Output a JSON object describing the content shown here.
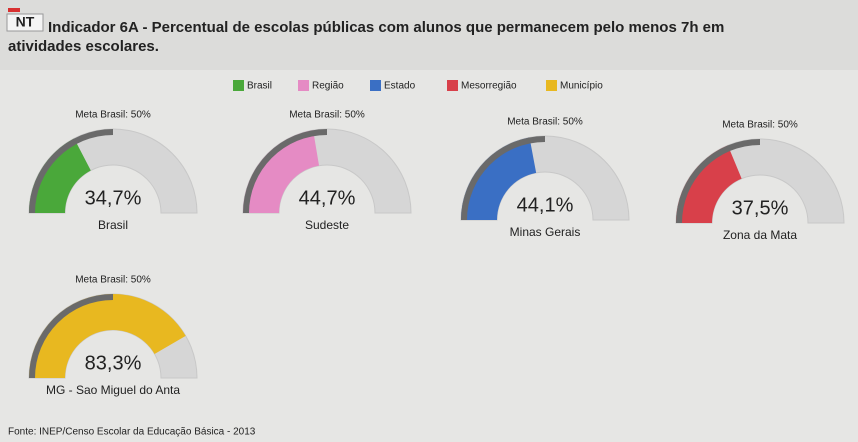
{
  "badge": "NT",
  "title_lines": [
    "Indicador 6A - Percentual de escolas públicas com alunos que permanecem pelo menos 7h em",
    "atividades escolares."
  ],
  "legend": [
    {
      "name": "Brasil",
      "color": "#4aa83a"
    },
    {
      "name": "Região",
      "color": "#e58bc4"
    },
    {
      "name": "Estado",
      "color": "#3a6fc4"
    },
    {
      "name": "Mesorregião",
      "color": "#d8404a"
    },
    {
      "name": "Município",
      "color": "#e8b820"
    }
  ],
  "chart_data": [
    {
      "type": "gauge",
      "target": 50,
      "target_label": "Meta Brasil: 50%",
      "value": 34.7,
      "value_label": "34,7%",
      "label": "Brasil",
      "color": "#4aa83a",
      "ylim": [
        0,
        100
      ]
    },
    {
      "type": "gauge",
      "target": 50,
      "target_label": "Meta Brasil: 50%",
      "value": 44.7,
      "value_label": "44,7%",
      "label": "Sudeste",
      "color": "#e58bc4",
      "ylim": [
        0,
        100
      ]
    },
    {
      "type": "gauge",
      "target": 50,
      "target_label": "Meta Brasil: 50%",
      "value": 44.1,
      "value_label": "44,1%",
      "label": "Minas Gerais",
      "color": "#3a6fc4",
      "ylim": [
        0,
        100
      ]
    },
    {
      "type": "gauge",
      "target": 50,
      "target_label": "Meta Brasil: 50%",
      "value": 37.5,
      "value_label": "37,5%",
      "label": "Zona da Mata",
      "color": "#d8404a",
      "ylim": [
        0,
        100
      ]
    },
    {
      "type": "gauge",
      "target": 50,
      "target_label": "Meta Brasil: 50%",
      "value": 83.3,
      "value_label": "83,3%",
      "label": "MG - Sao Miguel do Anta",
      "color": "#e8b820",
      "ylim": [
        0,
        100
      ]
    }
  ],
  "source": "Fonte: INEP/Censo Escolar da Educação Básica - 2013"
}
